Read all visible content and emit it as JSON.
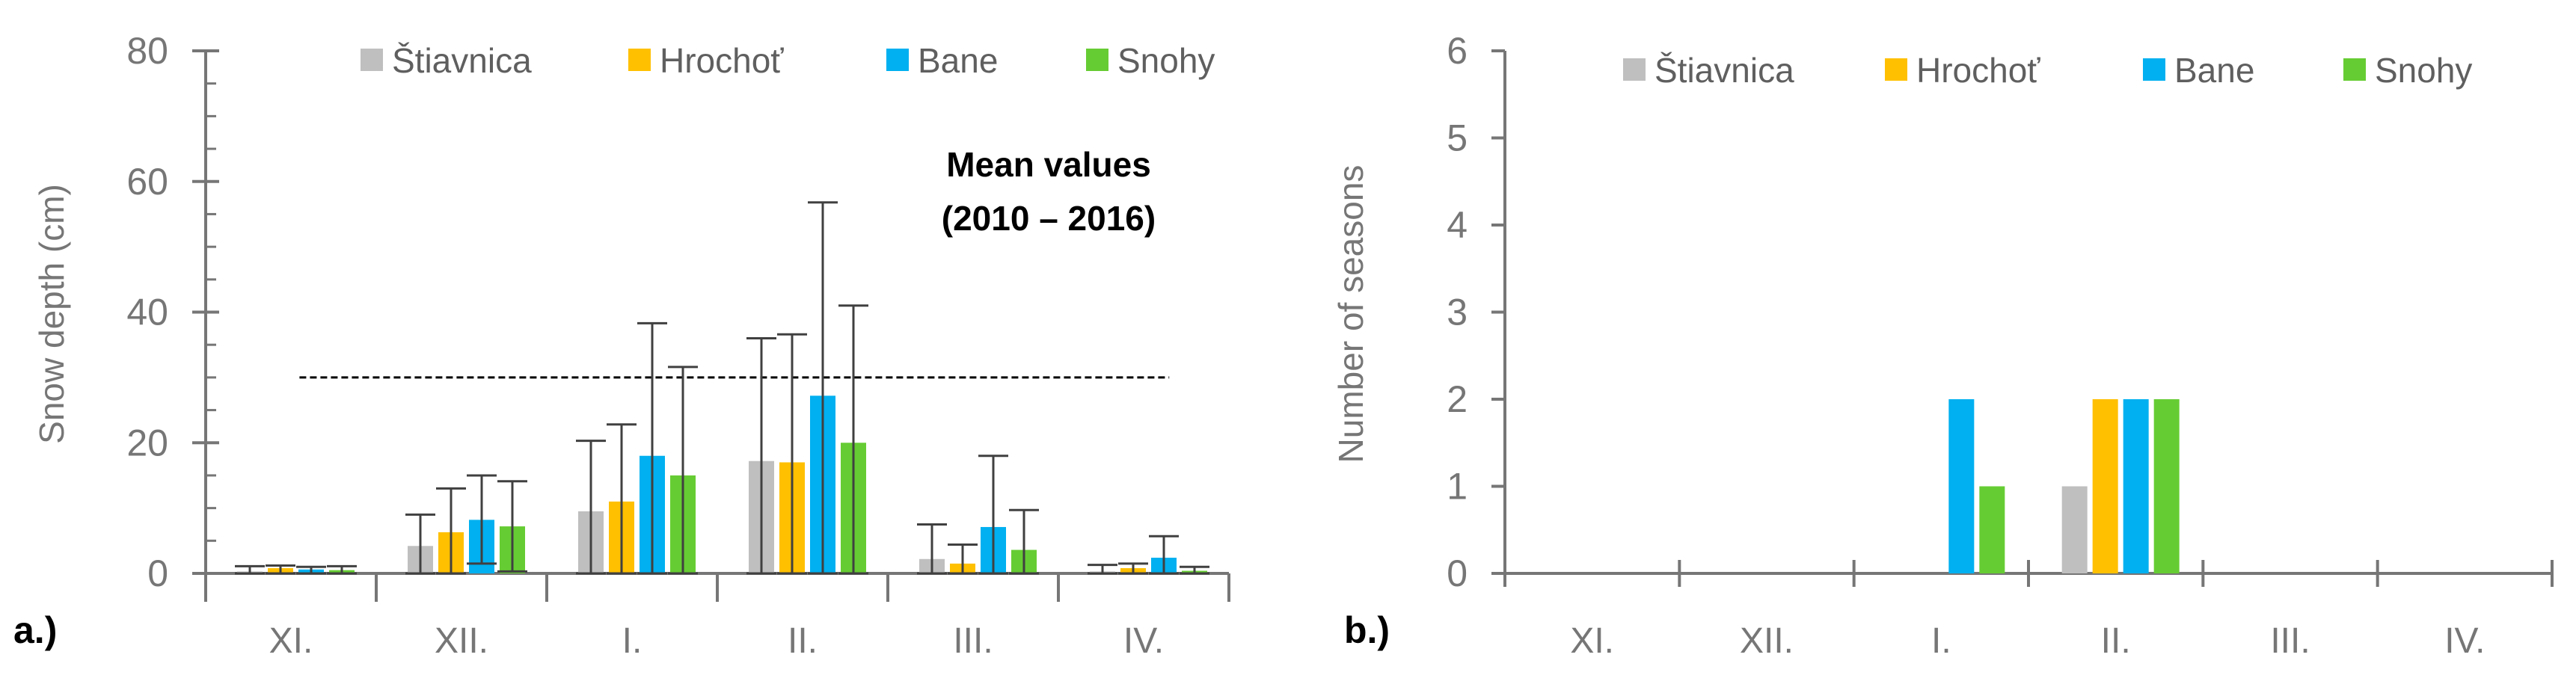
{
  "colors": {
    "stiavnica": "#bfbfbf",
    "hrochot": "#ffc000",
    "bane": "#00b0f0",
    "snohy": "#66cc33",
    "axis": "#767676",
    "errorbar": "#404040"
  },
  "chart_data": [
    {
      "type": "bar",
      "panel_label": "a.)",
      "categories": [
        "XI.",
        "XII.",
        "I.",
        "II.",
        "III.",
        "IV."
      ],
      "ylabel": "Snow depth (cm)",
      "xlabel": "",
      "ylim": [
        0,
        80
      ],
      "yticks": [
        "0",
        "20",
        "40",
        "60",
        "80"
      ],
      "legend": [
        "Štiavnica",
        "Hrochoť",
        "Bane",
        "Snohy"
      ],
      "legend_position": "top",
      "annotation_line1": "Mean values",
      "annotation_line2": "(2010 – 2016)",
      "threshold": {
        "value": 30,
        "x_from": 0.55,
        "x_to": 5.65,
        "style": "dashed"
      },
      "series": [
        {
          "name": "Štiavnica",
          "values": [
            0.3,
            4.2,
            9.5,
            17.2,
            2.2,
            0.3
          ],
          "err_upper": [
            1.1,
            9.0,
            20.3,
            36.0,
            7.5,
            1.3
          ],
          "err_lower": [
            0,
            0,
            0,
            0,
            0,
            0
          ]
        },
        {
          "name": "Hrochoť",
          "values": [
            0.8,
            6.3,
            11.0,
            17.0,
            1.5,
            0.8
          ],
          "err_upper": [
            1.2,
            13.0,
            22.8,
            36.6,
            4.4,
            1.5
          ],
          "err_lower": [
            0,
            0,
            0,
            0,
            0,
            0
          ]
        },
        {
          "name": "Bane",
          "values": [
            0.6,
            8.2,
            18.0,
            27.2,
            7.1,
            2.4
          ],
          "err_upper": [
            1.0,
            15.0,
            38.3,
            56.8,
            18.0,
            5.7
          ],
          "err_lower": [
            0,
            1.5,
            0,
            0,
            0,
            0
          ]
        },
        {
          "name": "Snohy",
          "values": [
            0.5,
            7.2,
            15.0,
            20.0,
            3.6,
            0.4
          ],
          "err_upper": [
            1.1,
            14.1,
            31.6,
            41.0,
            9.7,
            1.0
          ],
          "err_lower": [
            0,
            0.3,
            0,
            0,
            0,
            0
          ]
        }
      ]
    },
    {
      "type": "bar",
      "panel_label": "b.)",
      "categories": [
        "XI.",
        "XII.",
        "I.",
        "II.",
        "III.",
        "IV."
      ],
      "ylabel": "Number of seasons",
      "xlabel": "",
      "ylim": [
        0,
        6
      ],
      "yticks": [
        "0",
        "1",
        "2",
        "3",
        "4",
        "5",
        "6"
      ],
      "legend": [
        "Štiavnica",
        "Hrochoť",
        "Bane",
        "Snohy"
      ],
      "legend_position": "top",
      "series": [
        {
          "name": "Štiavnica",
          "values": [
            0,
            0,
            0,
            1,
            0,
            0
          ]
        },
        {
          "name": "Hrochoť",
          "values": [
            0,
            0,
            0,
            2,
            0,
            0
          ]
        },
        {
          "name": "Bane",
          "values": [
            0,
            0,
            2,
            2,
            0,
            0
          ]
        },
        {
          "name": "Snohy",
          "values": [
            0,
            0,
            1,
            2,
            0,
            0
          ]
        }
      ]
    }
  ]
}
